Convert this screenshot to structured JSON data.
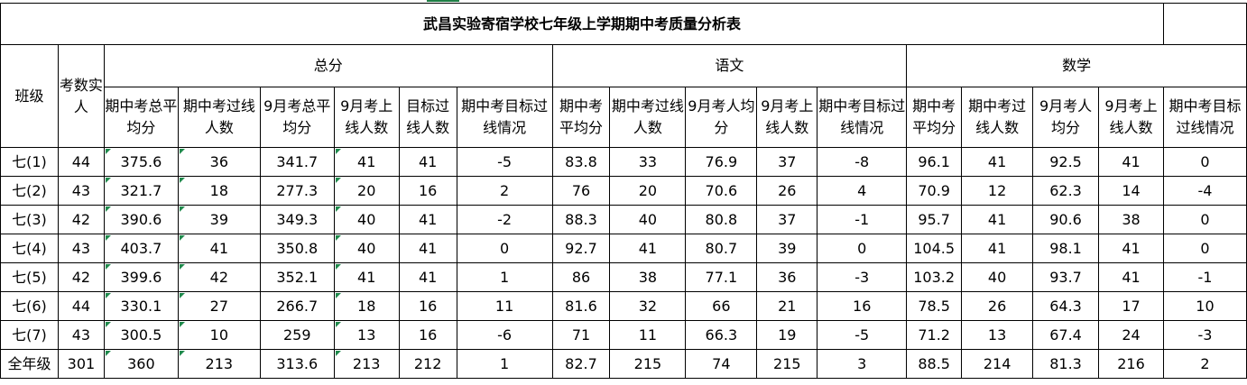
{
  "title": "武昌实验寄宿学校七年级上学期期中考质量分析表",
  "headers": {
    "class": "班级",
    "count": "考数实人",
    "groups": [
      "总分",
      "语文",
      "数学"
    ],
    "total": [
      "期中考总平均分",
      "期中考过线人数",
      "9月考总平均分",
      "9月考上线人数",
      "目标过线人数",
      "期中考目标过线情况"
    ],
    "chinese": [
      "期中考平均分",
      "期中考过线人数",
      "9月考人均分",
      "9月考上线人数",
      "期中考目标过线情况"
    ],
    "math": [
      "期中考平均分",
      "期中考过线人数",
      "9月考人均分",
      "9月考上线人数",
      "期中考目标过线情况"
    ]
  },
  "rows": [
    [
      "七(1)",
      "44",
      "375.6",
      "36",
      "341.7",
      "41",
      "41",
      "-5",
      "83.8",
      "33",
      "76.9",
      "37",
      "-8",
      "96.1",
      "41",
      "92.5",
      "41",
      "0"
    ],
    [
      "七(2)",
      "43",
      "321.7",
      "18",
      "277.3",
      "20",
      "16",
      "2",
      "76",
      "20",
      "70.6",
      "26",
      "4",
      "70.9",
      "12",
      "62.3",
      "14",
      "-4"
    ],
    [
      "七(3)",
      "42",
      "390.6",
      "39",
      "349.3",
      "40",
      "41",
      "-2",
      "88.3",
      "40",
      "80.8",
      "37",
      "-1",
      "95.7",
      "41",
      "90.6",
      "38",
      "0"
    ],
    [
      "七(4)",
      "43",
      "403.7",
      "41",
      "350.8",
      "40",
      "41",
      "0",
      "92.7",
      "41",
      "80.7",
      "39",
      "0",
      "104.5",
      "41",
      "98.1",
      "41",
      "0"
    ],
    [
      "七(5)",
      "42",
      "399.6",
      "42",
      "352.1",
      "41",
      "41",
      "1",
      "86",
      "38",
      "77.1",
      "36",
      "-3",
      "103.2",
      "40",
      "93.7",
      "41",
      "-1"
    ],
    [
      "七(6)",
      "44",
      "330.1",
      "27",
      "266.7",
      "18",
      "16",
      "11",
      "81.6",
      "32",
      "66",
      "21",
      "16",
      "78.5",
      "26",
      "64.3",
      "17",
      "10"
    ],
    [
      "七(7)",
      "43",
      "300.5",
      "10",
      "259",
      "13",
      "16",
      "-6",
      "71",
      "11",
      "66.3",
      "19",
      "-5",
      "71.2",
      "13",
      "67.4",
      "24",
      "-3"
    ],
    [
      "全年级",
      "301",
      "360",
      "213",
      "313.6",
      "213",
      "212",
      "1",
      "82.7",
      "215",
      "74",
      "215",
      "3",
      "88.5",
      "214",
      "81.3",
      "216",
      "2"
    ]
  ]
}
